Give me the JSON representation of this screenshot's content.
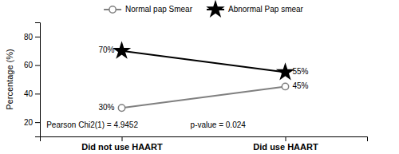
{
  "chart_data": {
    "type": "line",
    "categories": [
      "Did not use HAART",
      "Did use HAART"
    ],
    "series": [
      {
        "name": "Normal pap Smear",
        "color": "#808080",
        "marker": "circle",
        "values": [
          30,
          45
        ],
        "value_labels": [
          "30%",
          "45%"
        ]
      },
      {
        "name": "Abnormal Pap smear",
        "color": "#000000",
        "marker": "star",
        "values": [
          70,
          55
        ],
        "value_labels": [
          "70%",
          "55%"
        ]
      }
    ],
    "y_label": "Percentage (%)",
    "ylim": [
      10,
      90
    ],
    "yticks": [
      20,
      40,
      60,
      80
    ],
    "annotations": [
      "Pearson Chi2(1) = 4.9452",
      "p-value = 0.024"
    ],
    "data_labels": true,
    "legend": "top"
  }
}
